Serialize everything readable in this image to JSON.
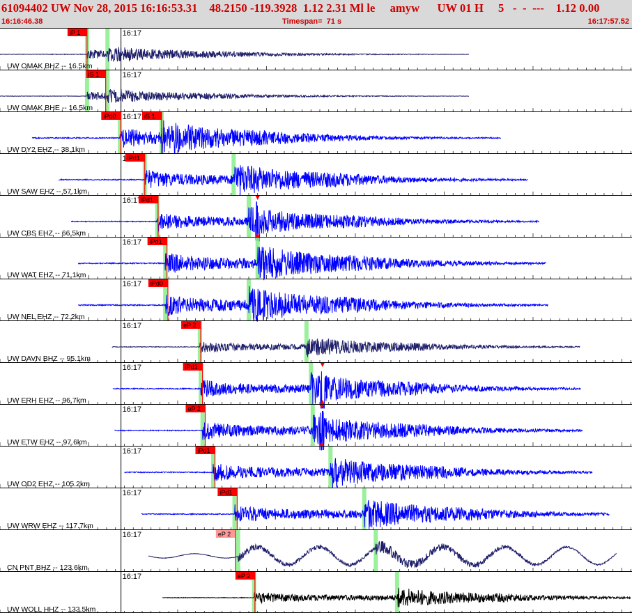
{
  "header": {
    "title": "61094402 UW Nov 28, 2015 16:16:53.31    48.2150 -119.3928  1.12 2.31 Ml le     amyw      UW 01 H     5   -  -  ---    1.12 0.00",
    "start_time": "16:16:46.38",
    "timespan": "Timespan=  71 s",
    "end_time": "16:17:57.52"
  },
  "colors": {
    "background": "#ffffff",
    "header_bg": "#d9d9d9",
    "header_text": "#cc0000",
    "pick_red": "#ff0000",
    "pick_pink": "#ff9999",
    "green_window": "#90ee90",
    "trace_blue": "#0000ff",
    "trace_navy": "#1f1f6b",
    "trace_black": "#000000"
  },
  "chart_data": {
    "type": "line",
    "title": "61094402 UW Nov 28, 2015 16:16:53.31",
    "x_unit": "seconds after 16:16:46.38",
    "xlim": [
      0,
      71.14
    ],
    "minute_label": "16:17",
    "minute_mark_s": 13.62,
    "event": {
      "origin": "16:16:53.31",
      "lat": 48.215,
      "lon": -119.3928,
      "magnitude": 2.31,
      "mag_type": "Ml"
    },
    "traces": [
      {
        "label": "UW OMAK BHZ -- 16.5km",
        "color": "#1f1f6b",
        "start_s": 0.0,
        "end_s": 52.8,
        "p_s": 9.8,
        "s_s": 12.1,
        "amp": 0.45,
        "lp": 0,
        "burst_s": null,
        "pick": "iP 1",
        "pick_style": "red",
        "pick_x_s": 7.6,
        "extra_picks": [],
        "s_markers": []
      },
      {
        "label": "UW OMAK BHE -- 16.5km",
        "color": "#1f1f6b",
        "start_s": 0.0,
        "end_s": 52.8,
        "p_s": 9.8,
        "s_s": 12.1,
        "amp": 0.4,
        "lp": 0,
        "burst_s": null,
        "pick": "iS 1",
        "pick_style": "red",
        "pick_x_s": 9.7,
        "extra_picks": [],
        "s_markers": []
      },
      {
        "label": "UW DY2 EHZ -- 38.1km",
        "color": "#0000ff",
        "start_s": 3.6,
        "end_s": 56.4,
        "p_s": 13.5,
        "s_s": 18.2,
        "amp": 0.95,
        "lp": 0,
        "burst_s": null,
        "pick": "iPd0",
        "pick_style": "red",
        "pick_x_s": 11.4,
        "extra_picks": [
          {
            "label": "iS 1",
            "x_s": 16.0
          }
        ],
        "s_markers": []
      },
      {
        "label": "UW SAW EHZ -- 57.1km",
        "color": "#0000ff",
        "start_s": 6.6,
        "end_s": 59.4,
        "p_s": 16.3,
        "s_s": 26.3,
        "amp": 0.9,
        "lp": 0,
        "burst_s": null,
        "pick": "iPd1",
        "pick_style": "red",
        "pick_x_s": 14.1,
        "extra_picks": [],
        "s_markers": []
      },
      {
        "label": "UW CBS EHZ -- 66.5km",
        "color": "#0000ff",
        "start_s": 8.0,
        "end_s": 60.7,
        "p_s": 17.7,
        "s_s": 28.0,
        "amp": 0.8,
        "lp": 0,
        "burst_s": 29.0,
        "pick": "iPd1",
        "pick_style": "red",
        "pick_x_s": 15.6,
        "extra_picks": [],
        "s_markers": [
          29.0
        ]
      },
      {
        "label": "UW WAT EHZ -- 71.1km",
        "color": "#0000ff",
        "start_s": 8.8,
        "end_s": 61.5,
        "p_s": 18.6,
        "s_s": 29.0,
        "amp": 1.0,
        "lp": 0,
        "burst_s": null,
        "pick": "iPd1",
        "pick_style": "red",
        "pick_x_s": 16.6,
        "extra_picks": [],
        "s_markers": []
      },
      {
        "label": "UW NEL EHZ -- 72.2km",
        "color": "#0000ff",
        "start_s": 8.8,
        "end_s": 61.7,
        "p_s": 18.6,
        "s_s": 28.0,
        "amp": 1.0,
        "lp": 0,
        "burst_s": null,
        "pick": "iPd0",
        "pick_style": "red",
        "pick_x_s": 16.7,
        "extra_picks": [],
        "s_markers": []
      },
      {
        "label": "UW DAVN BHZ -- 95.1km",
        "color": "#1f1f6b",
        "start_s": 12.6,
        "end_s": 65.3,
        "p_s": 22.5,
        "s_s": 34.5,
        "amp": 0.55,
        "lp": 0,
        "burst_s": null,
        "pick": "eP 2",
        "pick_style": "red",
        "pick_x_s": 20.4,
        "extra_picks": [],
        "s_markers": []
      },
      {
        "label": "UW ERH EHZ -- 96.7km",
        "color": "#0000ff",
        "start_s": 12.7,
        "end_s": 65.4,
        "p_s": 22.6,
        "s_s": 35.0,
        "amp": 0.85,
        "lp": 0,
        "burst_s": 36.3,
        "pick": "iPd1",
        "pick_style": "red",
        "pick_x_s": 20.6,
        "extra_picks": [],
        "s_markers": [
          36.3
        ]
      },
      {
        "label": "UW ETW EHZ -- 97.6km",
        "color": "#0000ff",
        "start_s": 12.9,
        "end_s": 65.6,
        "p_s": 22.8,
        "s_s": 35.2,
        "amp": 0.85,
        "lp": 0,
        "burst_s": 36.2,
        "pick": "eP 2",
        "pick_style": "red",
        "pick_x_s": 20.9,
        "extra_picks": [],
        "s_markers": [
          36.2
        ]
      },
      {
        "label": "UW OD2 EHZ -- 105.2km",
        "color": "#0000ff",
        "start_s": 14.0,
        "end_s": 66.7,
        "p_s": 24.0,
        "s_s": 37.2,
        "amp": 0.85,
        "lp": 0,
        "burst_s": null,
        "pick": "iPd1",
        "pick_style": "red",
        "pick_x_s": 22.0,
        "extra_picks": [],
        "s_markers": []
      },
      {
        "label": "UW WRW EHZ -- 117.7km",
        "color": "#0000ff",
        "start_s": 15.9,
        "end_s": 68.6,
        "p_s": 26.4,
        "s_s": 41.0,
        "amp": 0.85,
        "lp": 0,
        "burst_s": null,
        "pick": "iPd1",
        "pick_style": "red",
        "pick_x_s": 24.5,
        "extra_picks": [],
        "s_markers": []
      },
      {
        "label": "CN PNT BHZ -- 123.6km",
        "color": "#1f1f6b",
        "start_s": 16.7,
        "end_s": 69.4,
        "p_s": 26.8,
        "s_s": 42.3,
        "amp": 0.35,
        "lp": 0.9,
        "burst_s": null,
        "pick": "eP 2",
        "pick_style": "pink",
        "pick_x_s": 24.3,
        "extra_picks": [],
        "s_markers": []
      },
      {
        "label": "UW WOLL HHZ -- 133.5km",
        "color": "#000000",
        "start_s": 18.3,
        "end_s": 71.0,
        "p_s": 28.6,
        "s_s": 44.7,
        "amp": 0.55,
        "lp": 0,
        "burst_s": null,
        "pick": "eP 2",
        "pick_style": "red",
        "pick_x_s": 26.5,
        "extra_picks": [],
        "s_markers": []
      }
    ]
  }
}
